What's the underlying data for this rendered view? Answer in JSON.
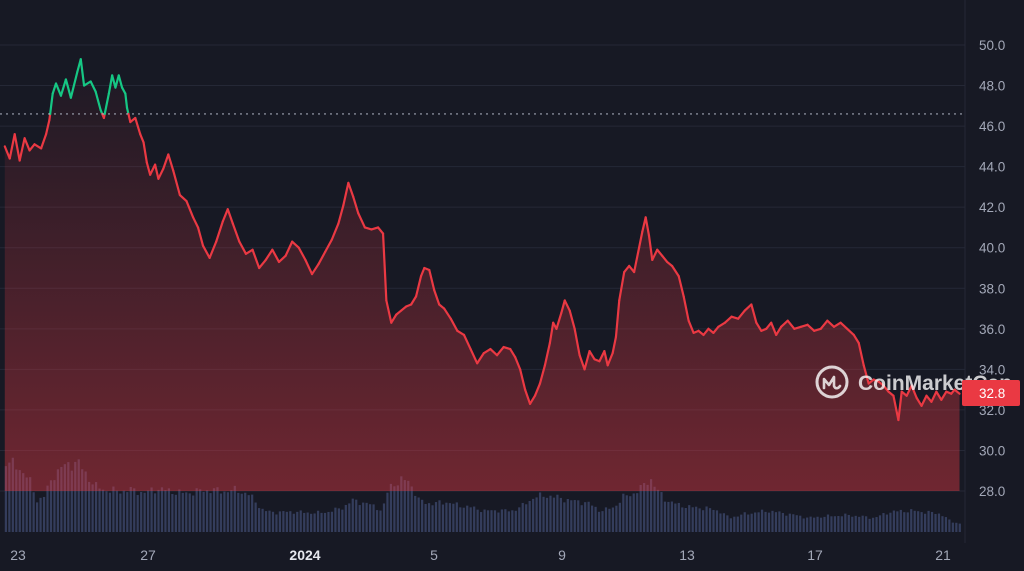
{
  "colors": {
    "background": "#171924",
    "grid": "#252836",
    "down": "#ea3943",
    "up": "#16c784",
    "volume": "#3a4466",
    "reference_line": "#b6bccb",
    "tick_text": "#a3a8b8"
  },
  "watermark": {
    "text": "CoinMarketCap",
    "icon": "coinmarketcap-logo-icon"
  },
  "chart_data": {
    "type": "line",
    "title": "",
    "xlabel": "",
    "ylabel": "",
    "x_tick_labels": [
      "23",
      "27",
      "2024",
      "5",
      "9",
      "13",
      "17",
      "21"
    ],
    "y_tick_labels": [
      "28.0",
      "30.0",
      "32.0",
      "34.0",
      "36.0",
      "38.0",
      "40.0",
      "42.0",
      "44.0",
      "46.0",
      "48.0",
      "50.0"
    ],
    "ylim": [
      26.2,
      51.2
    ],
    "grid": true,
    "reference_price": 46.6,
    "current_price_label": "32.8",
    "series": [
      {
        "points": [
          [
            22.6,
            45.0
          ],
          [
            22.75,
            44.4
          ],
          [
            22.9,
            45.6
          ],
          [
            23.05,
            44.3
          ],
          [
            23.2,
            45.4
          ],
          [
            23.35,
            44.8
          ],
          [
            23.5,
            45.1
          ],
          [
            23.7,
            44.9
          ],
          [
            23.85,
            45.6
          ],
          [
            23.95,
            46.3
          ],
          [
            24.05,
            47.6
          ],
          [
            24.15,
            48.1
          ],
          [
            24.3,
            47.5
          ],
          [
            24.45,
            48.3
          ],
          [
            24.6,
            47.4
          ],
          [
            24.8,
            48.7
          ],
          [
            24.9,
            49.3
          ],
          [
            25.0,
            48.0
          ],
          [
            25.2,
            48.2
          ],
          [
            25.35,
            47.7
          ],
          [
            25.5,
            46.8
          ],
          [
            25.6,
            46.4
          ],
          [
            25.75,
            47.6
          ],
          [
            25.85,
            48.5
          ],
          [
            25.95,
            47.9
          ],
          [
            26.05,
            48.5
          ],
          [
            26.15,
            47.9
          ],
          [
            26.25,
            47.6
          ],
          [
            26.3,
            46.9
          ],
          [
            26.4,
            46.2
          ],
          [
            26.55,
            46.4
          ],
          [
            26.7,
            45.6
          ],
          [
            26.8,
            45.2
          ],
          [
            26.9,
            44.2
          ],
          [
            27.0,
            43.6
          ],
          [
            27.15,
            44.1
          ],
          [
            27.25,
            43.4
          ],
          [
            27.4,
            43.9
          ],
          [
            27.55,
            44.6
          ],
          [
            27.7,
            43.8
          ],
          [
            27.9,
            42.6
          ],
          [
            28.1,
            42.3
          ],
          [
            28.3,
            41.5
          ],
          [
            28.45,
            41.0
          ],
          [
            28.6,
            40.1
          ],
          [
            28.8,
            39.5
          ],
          [
            29.0,
            40.3
          ],
          [
            29.2,
            41.3
          ],
          [
            29.35,
            41.9
          ],
          [
            29.5,
            41.2
          ],
          [
            29.7,
            40.3
          ],
          [
            29.9,
            39.7
          ],
          [
            30.1,
            39.9
          ],
          [
            30.3,
            39.0
          ],
          [
            30.5,
            39.4
          ],
          [
            30.7,
            39.9
          ],
          [
            30.9,
            39.3
          ],
          [
            31.1,
            39.6
          ],
          [
            31.3,
            40.3
          ],
          [
            31.5,
            40.0
          ],
          [
            31.7,
            39.4
          ],
          [
            31.9,
            38.7
          ],
          [
            32.1,
            39.2
          ],
          [
            32.3,
            39.8
          ],
          [
            32.5,
            40.4
          ],
          [
            32.7,
            41.2
          ],
          [
            32.85,
            42.1
          ],
          [
            33.0,
            43.2
          ],
          [
            33.15,
            42.5
          ],
          [
            33.3,
            41.7
          ],
          [
            33.5,
            41.0
          ],
          [
            33.7,
            40.9
          ],
          [
            33.9,
            41.0
          ],
          [
            34.05,
            40.7
          ],
          [
            34.15,
            37.4
          ],
          [
            34.3,
            36.3
          ],
          [
            34.45,
            36.7
          ],
          [
            34.6,
            36.9
          ],
          [
            34.75,
            37.1
          ],
          [
            34.9,
            37.2
          ],
          [
            35.05,
            37.6
          ],
          [
            35.2,
            38.6
          ],
          [
            35.3,
            39.0
          ],
          [
            35.45,
            38.9
          ],
          [
            35.6,
            37.9
          ],
          [
            35.75,
            37.2
          ],
          [
            35.9,
            37.0
          ],
          [
            36.1,
            36.5
          ],
          [
            36.3,
            35.9
          ],
          [
            36.5,
            35.7
          ],
          [
            36.7,
            35.0
          ],
          [
            36.9,
            34.3
          ],
          [
            37.1,
            34.8
          ],
          [
            37.3,
            35.0
          ],
          [
            37.5,
            34.7
          ],
          [
            37.7,
            35.1
          ],
          [
            37.9,
            35.0
          ],
          [
            38.05,
            34.6
          ],
          [
            38.2,
            34.0
          ],
          [
            38.35,
            33.0
          ],
          [
            38.5,
            32.3
          ],
          [
            38.65,
            32.7
          ],
          [
            38.8,
            33.3
          ],
          [
            38.95,
            34.2
          ],
          [
            39.1,
            35.3
          ],
          [
            39.2,
            36.3
          ],
          [
            39.3,
            36.0
          ],
          [
            39.45,
            36.8
          ],
          [
            39.55,
            37.4
          ],
          [
            39.7,
            36.9
          ],
          [
            39.85,
            36.0
          ],
          [
            40.0,
            34.7
          ],
          [
            40.15,
            34.0
          ],
          [
            40.3,
            34.9
          ],
          [
            40.45,
            34.5
          ],
          [
            40.6,
            34.4
          ],
          [
            40.75,
            34.9
          ],
          [
            40.85,
            34.2
          ],
          [
            41.0,
            34.8
          ],
          [
            41.1,
            35.6
          ],
          [
            41.2,
            37.4
          ],
          [
            41.35,
            38.8
          ],
          [
            41.5,
            39.1
          ],
          [
            41.65,
            38.8
          ],
          [
            41.8,
            40.0
          ],
          [
            41.9,
            40.8
          ],
          [
            42.0,
            41.5
          ],
          [
            42.1,
            40.6
          ],
          [
            42.2,
            39.4
          ],
          [
            42.35,
            39.9
          ],
          [
            42.5,
            39.6
          ],
          [
            42.65,
            39.3
          ],
          [
            42.8,
            39.1
          ],
          [
            43.0,
            38.6
          ],
          [
            43.15,
            37.6
          ],
          [
            43.3,
            36.4
          ],
          [
            43.45,
            35.8
          ],
          [
            43.6,
            35.9
          ],
          [
            43.75,
            35.7
          ],
          [
            43.9,
            36.0
          ],
          [
            44.05,
            35.8
          ],
          [
            44.2,
            36.1
          ],
          [
            44.4,
            36.3
          ],
          [
            44.6,
            36.6
          ],
          [
            44.8,
            36.5
          ],
          [
            45.0,
            36.9
          ],
          [
            45.2,
            37.2
          ],
          [
            45.35,
            36.3
          ],
          [
            45.5,
            35.9
          ],
          [
            45.65,
            36.0
          ],
          [
            45.8,
            36.3
          ],
          [
            45.95,
            35.7
          ],
          [
            46.1,
            36.1
          ],
          [
            46.3,
            36.4
          ],
          [
            46.5,
            36.0
          ],
          [
            46.7,
            36.1
          ],
          [
            46.9,
            36.2
          ],
          [
            47.1,
            35.9
          ],
          [
            47.3,
            36.0
          ],
          [
            47.5,
            36.4
          ],
          [
            47.7,
            36.1
          ],
          [
            47.9,
            36.3
          ],
          [
            48.1,
            36.0
          ],
          [
            48.3,
            35.7
          ],
          [
            48.45,
            35.3
          ],
          [
            48.6,
            34.2
          ],
          [
            48.75,
            33.3
          ],
          [
            48.9,
            33.5
          ],
          [
            49.05,
            33.4
          ],
          [
            49.2,
            33.2
          ],
          [
            49.35,
            32.9
          ],
          [
            49.5,
            32.7
          ],
          [
            49.65,
            31.5
          ],
          [
            49.75,
            32.9
          ],
          [
            49.9,
            32.7
          ],
          [
            50.05,
            33.2
          ],
          [
            50.2,
            32.6
          ],
          [
            50.35,
            32.2
          ],
          [
            50.5,
            32.7
          ],
          [
            50.65,
            32.4
          ],
          [
            50.8,
            32.9
          ],
          [
            50.95,
            32.5
          ],
          [
            51.1,
            32.9
          ],
          [
            51.25,
            32.8
          ],
          [
            51.35,
            33.0
          ],
          [
            51.5,
            32.8
          ]
        ]
      }
    ],
    "volume": [
      [
        22.6,
        1.0
      ],
      [
        23.0,
        0.92
      ],
      [
        23.3,
        0.75
      ],
      [
        23.55,
        0.45
      ],
      [
        23.75,
        0.5
      ],
      [
        24.05,
        0.82
      ],
      [
        24.4,
        0.95
      ],
      [
        24.75,
        1.0
      ],
      [
        25.0,
        0.85
      ],
      [
        25.3,
        0.65
      ],
      [
        25.6,
        0.6
      ],
      [
        26.0,
        0.58
      ],
      [
        26.4,
        0.6
      ],
      [
        26.8,
        0.56
      ],
      [
        27.2,
        0.62
      ],
      [
        27.6,
        0.58
      ],
      [
        28.0,
        0.55
      ],
      [
        28.4,
        0.58
      ],
      [
        28.8,
        0.6
      ],
      [
        29.2,
        0.58
      ],
      [
        29.6,
        0.6
      ],
      [
        30.0,
        0.52
      ],
      [
        30.4,
        0.3
      ],
      [
        30.8,
        0.28
      ],
      [
        31.2,
        0.29
      ],
      [
        31.6,
        0.28
      ],
      [
        32.0,
        0.27
      ],
      [
        32.4,
        0.29
      ],
      [
        32.8,
        0.35
      ],
      [
        33.1,
        0.45
      ],
      [
        33.4,
        0.42
      ],
      [
        33.7,
        0.38
      ],
      [
        34.0,
        0.3
      ],
      [
        34.2,
        0.65
      ],
      [
        34.5,
        0.72
      ],
      [
        34.8,
        0.74
      ],
      [
        35.1,
        0.45
      ],
      [
        35.5,
        0.4
      ],
      [
        35.9,
        0.43
      ],
      [
        36.3,
        0.38
      ],
      [
        36.7,
        0.35
      ],
      [
        37.1,
        0.3
      ],
      [
        37.5,
        0.31
      ],
      [
        37.9,
        0.3
      ],
      [
        38.2,
        0.36
      ],
      [
        38.6,
        0.5
      ],
      [
        39.0,
        0.52
      ],
      [
        39.4,
        0.48
      ],
      [
        39.8,
        0.44
      ],
      [
        40.2,
        0.42
      ],
      [
        40.6,
        0.3
      ],
      [
        41.0,
        0.35
      ],
      [
        41.3,
        0.5
      ],
      [
        41.6,
        0.55
      ],
      [
        41.9,
        0.65
      ],
      [
        42.1,
        0.78
      ],
      [
        42.3,
        0.6
      ],
      [
        42.6,
        0.45
      ],
      [
        43.0,
        0.38
      ],
      [
        43.4,
        0.35
      ],
      [
        43.8,
        0.34
      ],
      [
        44.2,
        0.3
      ],
      [
        44.5,
        0.2
      ],
      [
        44.9,
        0.25
      ],
      [
        45.3,
        0.28
      ],
      [
        45.7,
        0.3
      ],
      [
        46.1,
        0.27
      ],
      [
        46.5,
        0.24
      ],
      [
        46.9,
        0.2
      ],
      [
        47.3,
        0.22
      ],
      [
        47.7,
        0.23
      ],
      [
        48.1,
        0.24
      ],
      [
        48.5,
        0.22
      ],
      [
        48.9,
        0.2
      ],
      [
        49.3,
        0.28
      ],
      [
        49.7,
        0.3
      ],
      [
        50.1,
        0.3
      ],
      [
        50.5,
        0.28
      ],
      [
        50.9,
        0.26
      ],
      [
        51.2,
        0.15
      ],
      [
        51.5,
        0.12
      ]
    ]
  }
}
